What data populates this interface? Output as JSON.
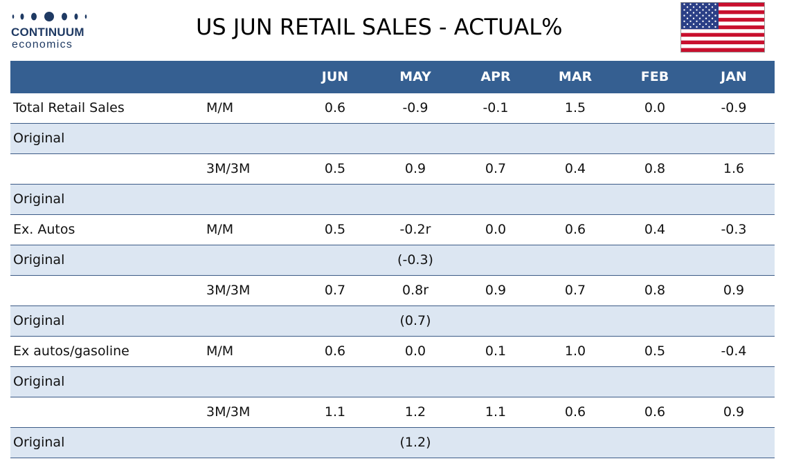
{
  "logo": {
    "name": "CONTINUUM",
    "sub": "economics"
  },
  "title": "US JUN RETAIL SALES - ACTUAL%",
  "flag_icon": "us-flag-icon",
  "colors": {
    "header_bg": "#355f91",
    "alt_row_bg": "#dce6f2",
    "brand": "#1f3a63"
  },
  "columns": [
    "JUN",
    "MAY",
    "APR",
    "MAR",
    "FEB",
    "JAN"
  ],
  "rows": [
    {
      "label": "Total Retail Sales",
      "measure": "M/M",
      "values": [
        "0.6",
        "-0.9",
        "-0.1",
        "1.5",
        "0.0",
        "-0.9"
      ],
      "alt": false
    },
    {
      "label": "Original",
      "measure": "",
      "values": [
        "",
        "",
        "",
        "",
        "",
        ""
      ],
      "alt": true
    },
    {
      "label": "",
      "measure": "3M/3M",
      "values": [
        "0.5",
        "0.9",
        "0.7",
        "0.4",
        "0.8",
        "1.6"
      ],
      "alt": false
    },
    {
      "label": "Original",
      "measure": "",
      "values": [
        "",
        "",
        "",
        "",
        "",
        ""
      ],
      "alt": true
    },
    {
      "label": "Ex. Autos",
      "measure": "M/M",
      "values": [
        "0.5",
        "-0.2r",
        "0.0",
        "0.6",
        "0.4",
        "-0.3"
      ],
      "alt": false
    },
    {
      "label": "Original",
      "measure": "",
      "values": [
        "",
        "(-0.3)",
        "",
        "",
        "",
        ""
      ],
      "alt": true
    },
    {
      "label": "",
      "measure": "3M/3M",
      "values": [
        "0.7",
        "0.8r",
        "0.9",
        "0.7",
        "0.8",
        "0.9"
      ],
      "alt": false
    },
    {
      "label": "Original",
      "measure": "",
      "values": [
        "",
        "(0.7)",
        "",
        "",
        "",
        ""
      ],
      "alt": true
    },
    {
      "label": "Ex autos/gasoline",
      "measure": "M/M",
      "values": [
        "0.6",
        "0.0",
        "0.1",
        "1.0",
        "0.5",
        "-0.4"
      ],
      "alt": false
    },
    {
      "label": "Original",
      "measure": "",
      "values": [
        "",
        "",
        "",
        "",
        "",
        ""
      ],
      "alt": true
    },
    {
      "label": "",
      "measure": "3M/3M",
      "values": [
        "1.1",
        "1.2",
        "1.1",
        "0.6",
        "0.6",
        "0.9"
      ],
      "alt": false
    },
    {
      "label": "Original",
      "measure": "",
      "values": [
        "",
        "(1.2)",
        "",
        "",
        "",
        ""
      ],
      "alt": true
    }
  ]
}
